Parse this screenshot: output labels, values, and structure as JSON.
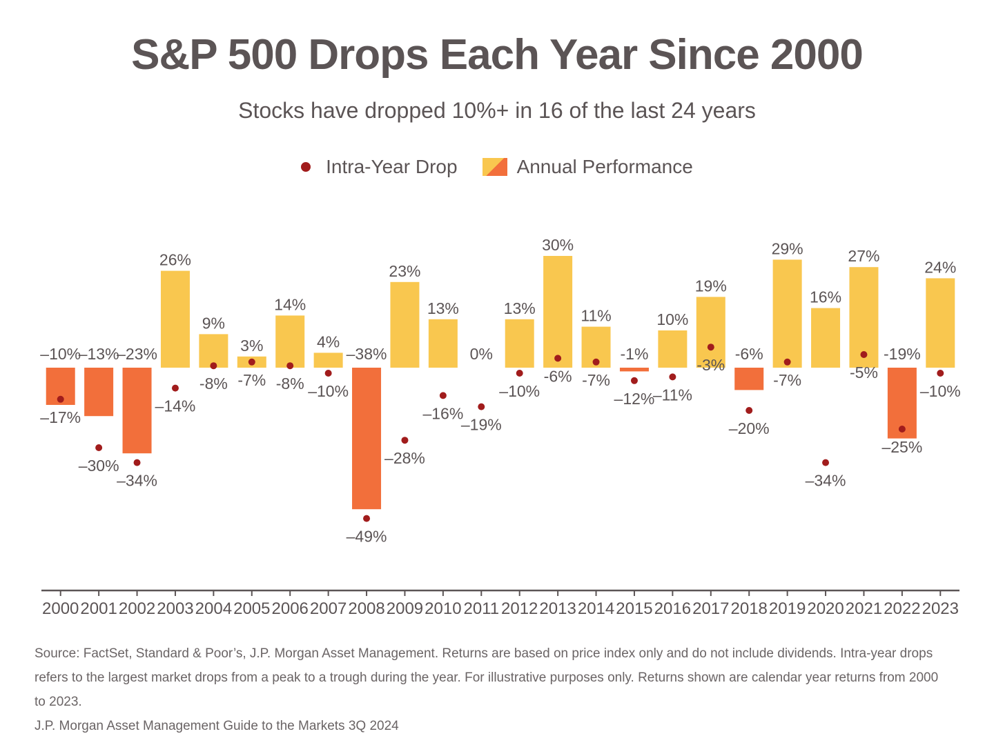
{
  "chart_data": {
    "type": "bar",
    "title": "S&P 500 Drops Each Year Since 2000",
    "subtitle": "Stocks have dropped 10%+ in 16 of the last 24 years",
    "legend": {
      "intra_year_drop": "Intra-Year Drop",
      "annual_performance": "Annual Performance"
    },
    "categories": [
      "2000",
      "2001",
      "2002",
      "2003",
      "2004",
      "2005",
      "2006",
      "2007",
      "2008",
      "2009",
      "2010",
      "2011",
      "2012",
      "2013",
      "2014",
      "2015",
      "2016",
      "2017",
      "2018",
      "2019",
      "2020",
      "2021",
      "2022",
      "2023"
    ],
    "series": [
      {
        "name": "Annual Performance",
        "values": [
          -10,
          -13,
          -23,
          26,
          9,
          3,
          14,
          4,
          -38,
          23,
          13,
          0,
          13,
          30,
          11,
          -1,
          10,
          19,
          -6,
          29,
          16,
          27,
          -19,
          24
        ],
        "labels": [
          "–10%",
          "–13%",
          "–23%",
          "26%",
          "9%",
          "3%",
          "14%",
          "4%",
          "–38%",
          "23%",
          "13%",
          "0%",
          "13%",
          "30%",
          "11%",
          "-1%",
          "10%",
          "19%",
          "-6%",
          "29%",
          "16%",
          "27%",
          "-19%",
          "24%"
        ]
      },
      {
        "name": "Intra-Year Drop",
        "values": [
          -17,
          -30,
          -34,
          -14,
          -8,
          -7,
          -8,
          -10,
          -49,
          -28,
          -16,
          -19,
          -10,
          -6,
          -7,
          -12,
          -11,
          -3,
          -20,
          -7,
          -34,
          -5,
          -25,
          -10
        ],
        "labels": [
          "–17%",
          "–30%",
          "–34%",
          "–14%",
          "-8%",
          "-7%",
          "-8%",
          "–10%",
          "–49%",
          "–28%",
          "–16%",
          "–19%",
          "–10%",
          "-6%",
          "-7%",
          "–12%",
          "–11%",
          "-3%",
          "–20%",
          "-7%",
          "–34%",
          "-5%",
          "–25%",
          "–10%"
        ]
      }
    ],
    "colors": {
      "positive_bar": "#f9c74f",
      "negative_bar": "#f26f3b",
      "drop_dot": "#a11c1c",
      "axis": "#5b5455",
      "text": "#5b5455"
    },
    "ylim": [
      -58,
      34
    ]
  },
  "footnote": {
    "line1": "Source: FactSet, Standard & Poor’s, J.P. Morgan Asset Management. Returns are based on price index only and do not include dividends. Intra-year drops refers to the largest market drops from a peak to a trough during the year. For illustrative purposes only. Returns shown are calendar year returns from 2000 to 2023.",
    "line2": "J.P. Morgan Asset Management Guide to the Markets 3Q 2024"
  }
}
